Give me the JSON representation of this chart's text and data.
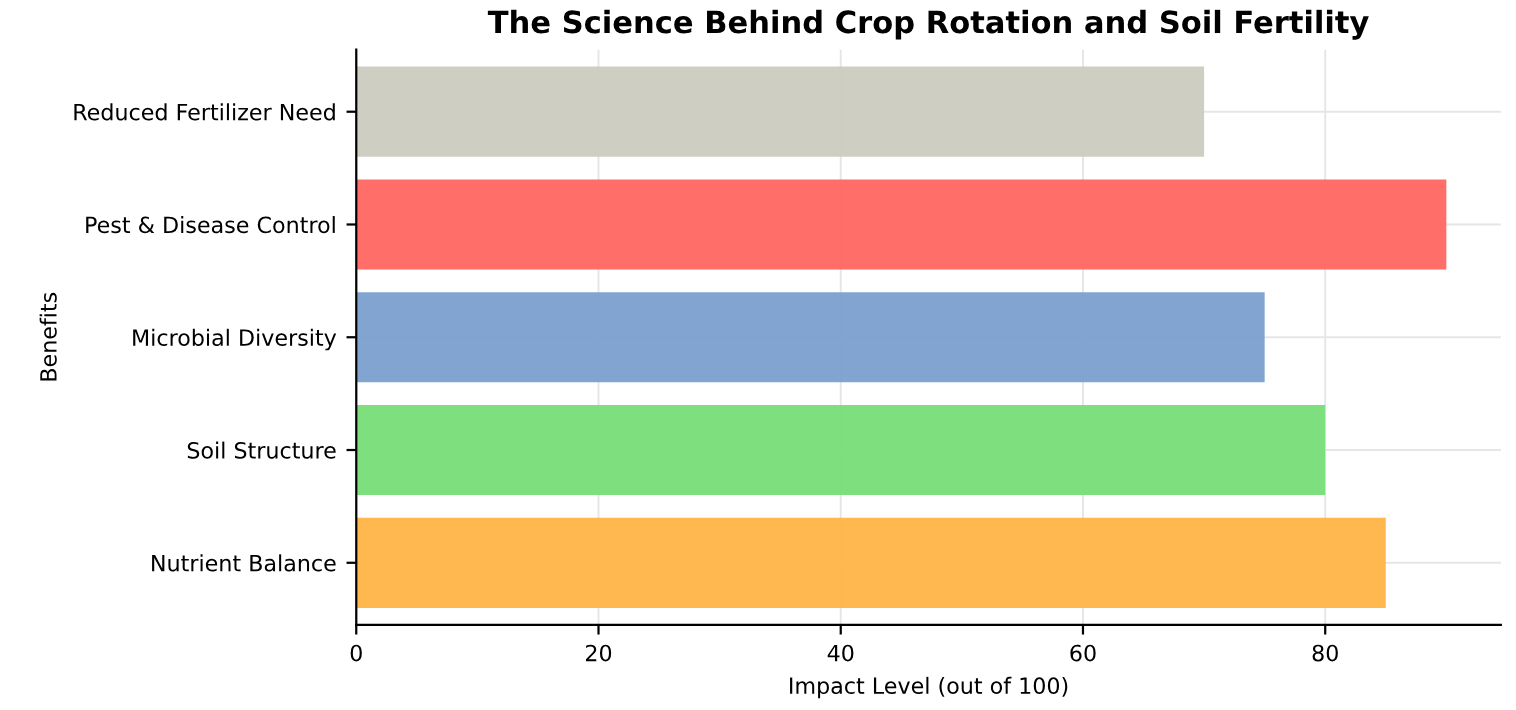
{
  "chart_data": {
    "type": "bar",
    "orientation": "horizontal",
    "title": "The Science Behind Crop Rotation and Soil Fertility",
    "xlabel": "Impact Level (out of 100)",
    "ylabel": "Benefits",
    "categories": [
      "Reduced Fertilizer Need",
      "Pest & Disease Control",
      "Microbial Diversity",
      "Soil Structure",
      "Nutrient Balance"
    ],
    "values": [
      70,
      90,
      75,
      80,
      85
    ],
    "colors": [
      "#cbcbbf",
      "#ff6660",
      "#7aa0cd",
      "#77dd77",
      "#ffb347"
    ],
    "xlim": [
      0,
      94.5
    ],
    "xticks": [
      0,
      20,
      40,
      60,
      80
    ],
    "grid": true
  }
}
